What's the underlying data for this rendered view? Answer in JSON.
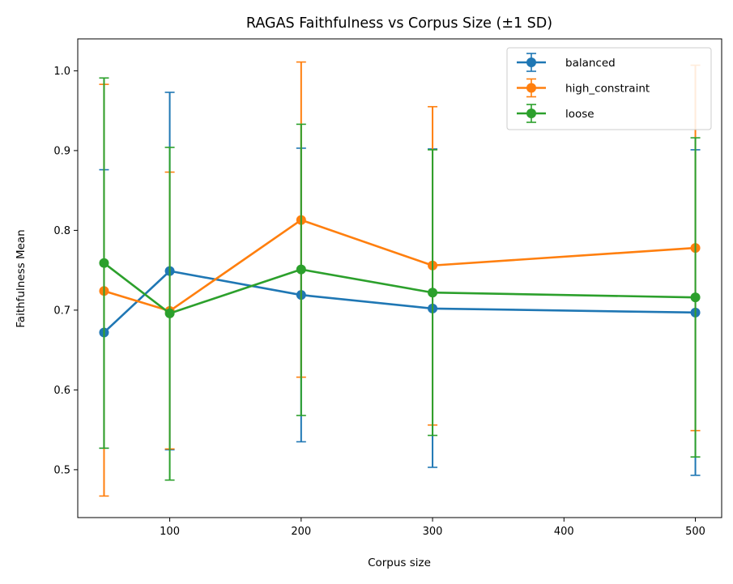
{
  "chart_data": {
    "type": "line",
    "title": "RAGAS Faithfulness vs Corpus Size (±1 SD)",
    "xlabel": "Corpus size",
    "ylabel": "Faithfulness Mean",
    "xlim": [
      30,
      520
    ],
    "ylim": [
      0.44,
      1.04
    ],
    "x_ticks": [
      100,
      200,
      300,
      400,
      500
    ],
    "y_ticks": [
      0.5,
      0.6,
      0.7,
      0.8,
      0.9,
      1.0
    ],
    "x_tick_labels": [
      "100",
      "200",
      "300",
      "400",
      "500"
    ],
    "y_tick_labels": [
      "0.5",
      "0.6",
      "0.7",
      "0.8",
      "0.9",
      "1.0"
    ],
    "x": [
      50,
      100,
      200,
      300,
      500
    ],
    "legend_position": "top-right",
    "grid": false,
    "error_bars": "±1 SD",
    "series": [
      {
        "name": "balanced",
        "color": "#1f77b4",
        "values": [
          0.672,
          0.749,
          0.719,
          0.702,
          0.697
        ],
        "lower": [
          0.527,
          0.525,
          0.535,
          0.503,
          0.493
        ],
        "upper": [
          0.876,
          0.973,
          0.903,
          0.902,
          0.901
        ]
      },
      {
        "name": "high_constraint",
        "color": "#ff7f0e",
        "values": [
          0.724,
          0.699,
          0.813,
          0.756,
          0.778
        ],
        "lower": [
          0.467,
          0.526,
          0.616,
          0.556,
          0.549
        ],
        "upper": [
          0.983,
          0.873,
          1.011,
          0.955,
          1.007
        ]
      },
      {
        "name": "loose",
        "color": "#2ca02c",
        "values": [
          0.759,
          0.696,
          0.751,
          0.722,
          0.716
        ],
        "lower": [
          0.527,
          0.487,
          0.568,
          0.543,
          0.516
        ],
        "upper": [
          0.991,
          0.904,
          0.933,
          0.901,
          0.916
        ]
      }
    ]
  }
}
